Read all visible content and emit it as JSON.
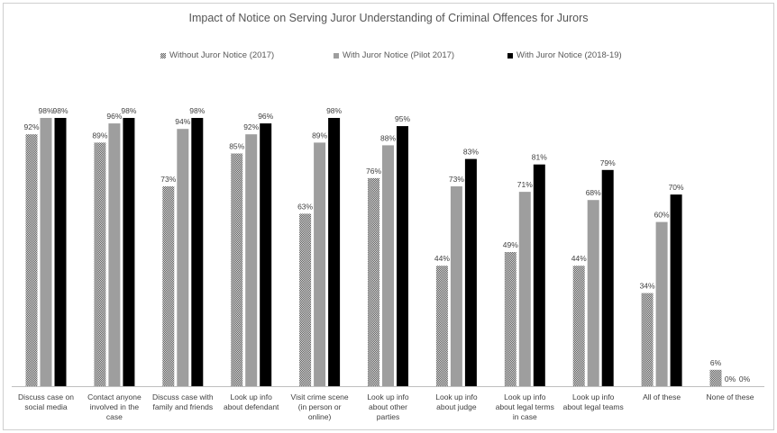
{
  "chart_data": {
    "type": "bar",
    "title": "Impact of Notice on Serving Juror Understanding of Criminal Offences for Jurors",
    "xlabel": "",
    "ylabel": "",
    "ylim": [
      0,
      100
    ],
    "grid": false,
    "legend_position": "top",
    "categories": [
      [
        "Discuss case on",
        "social media"
      ],
      [
        "Contact anyone",
        "involved in the",
        "case"
      ],
      [
        "Discuss case with",
        "family and friends"
      ],
      [
        "Look up info",
        "about defendant"
      ],
      [
        "Visit crime scene",
        "(in person or",
        "online)"
      ],
      [
        "Look up info",
        "about other",
        "parties"
      ],
      [
        "Look up info",
        "about judge"
      ],
      [
        "Look up info",
        "about legal terms",
        "in case"
      ],
      [
        "Look up info",
        "about legal teams"
      ],
      [
        "All of these"
      ],
      [
        "None of these"
      ]
    ],
    "series": [
      {
        "name": "Without Juror Notice (2017)",
        "pattern": "checker",
        "color": "#8c8c8c",
        "values": [
          92,
          89,
          73,
          85,
          63,
          76,
          44,
          49,
          44,
          34,
          6
        ]
      },
      {
        "name": "With Juror Notice (Pilot 2017)",
        "pattern": "solid",
        "color": "#9e9e9e",
        "values": [
          98,
          96,
          94,
          92,
          89,
          88,
          73,
          71,
          68,
          60,
          0
        ]
      },
      {
        "name": "With Juror Notice (2018-19)",
        "pattern": "solid",
        "color": "#000000",
        "values": [
          98,
          98,
          98,
          96,
          98,
          95,
          83,
          81,
          79,
          70,
          0
        ]
      }
    ],
    "value_suffix": "%"
  }
}
